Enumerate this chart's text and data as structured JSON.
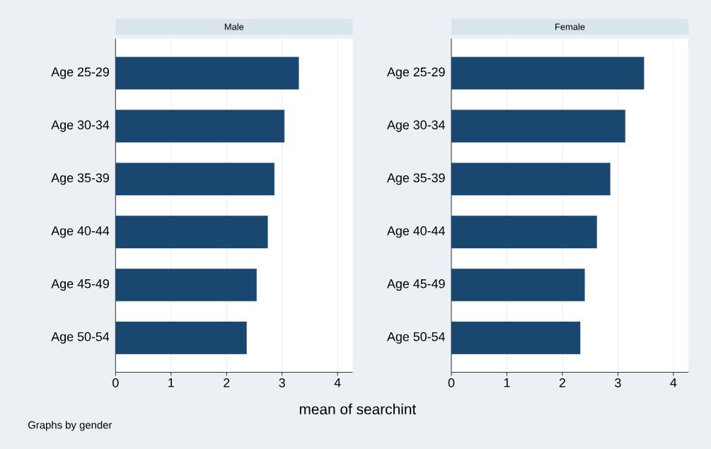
{
  "chart_data": [
    {
      "type": "bar",
      "orientation": "horizontal",
      "title": "Male",
      "categories": [
        "Age 25-29",
        "Age 30-34",
        "Age 35-39",
        "Age 40-44",
        "Age 45-49",
        "Age 50-54"
      ],
      "values": [
        3.3,
        3.04,
        2.86,
        2.74,
        2.54,
        2.36
      ],
      "color": "#1a476f",
      "xlim": [
        0,
        4.27
      ],
      "xticks": [
        0,
        1,
        2,
        3,
        4
      ],
      "grid": "x",
      "xlabel": "mean of searchint",
      "annotations": [
        "Graphs by gender"
      ]
    },
    {
      "type": "bar",
      "orientation": "horizontal",
      "title": "Female",
      "categories": [
        "Age 25-29",
        "Age 30-34",
        "Age 35-39",
        "Age 40-44",
        "Age 45-49",
        "Age 50-54"
      ],
      "values": [
        3.47,
        3.13,
        2.86,
        2.62,
        2.4,
        2.32
      ],
      "color": "#1a476f",
      "xlim": [
        0,
        4.27
      ],
      "xticks": [
        0,
        1,
        2,
        3,
        4
      ],
      "grid": "x"
    }
  ]
}
